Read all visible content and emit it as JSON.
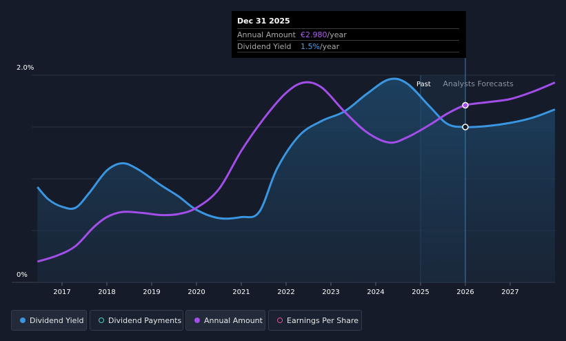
{
  "chart_data": {
    "type": "line",
    "x_ticks": [
      "2017",
      "2018",
      "2019",
      "2020",
      "2021",
      "2022",
      "2023",
      "2024",
      "2025",
      "2026",
      "2027"
    ],
    "y_ticks": [
      "2.0%",
      "0%"
    ],
    "ylim": [
      0,
      2.0
    ],
    "grid": true,
    "past_label": "Past",
    "forecast_label": "Analysts Forecasts",
    "series": [
      {
        "name": "Dividend Yield",
        "color": "#3a96e0",
        "x": [
          2016.45,
          2016.7,
          2017.0,
          2017.3,
          2017.6,
          2018.0,
          2018.35,
          2018.7,
          2019.2,
          2019.6,
          2020.0,
          2020.5,
          2021.0,
          2021.4,
          2021.8,
          2022.3,
          2022.8,
          2023.3,
          2023.8,
          2024.3,
          2024.7,
          2025.2,
          2025.6,
          2026.0,
          2026.5,
          2027.0,
          2027.5,
          2028.0
        ],
        "y": [
          0.92,
          0.8,
          0.73,
          0.72,
          0.86,
          1.08,
          1.15,
          1.09,
          0.94,
          0.83,
          0.7,
          0.62,
          0.63,
          0.68,
          1.1,
          1.42,
          1.56,
          1.65,
          1.82,
          1.96,
          1.92,
          1.7,
          1.53,
          1.5,
          1.51,
          1.54,
          1.59,
          1.67
        ]
      },
      {
        "name": "Annual Amount",
        "color": "#a24ee8",
        "x": [
          2016.45,
          2016.9,
          2017.3,
          2017.7,
          2018.0,
          2018.35,
          2018.8,
          2019.2,
          2019.6,
          2020.0,
          2020.5,
          2021.0,
          2021.5,
          2022.0,
          2022.4,
          2022.8,
          2023.3,
          2023.8,
          2024.3,
          2024.7,
          2025.2,
          2025.6,
          2026.0,
          2026.5,
          2027.0,
          2027.5,
          2028.0
        ],
        "y": [
          0.2,
          0.26,
          0.35,
          0.53,
          0.63,
          0.68,
          0.67,
          0.65,
          0.66,
          0.72,
          0.9,
          1.27,
          1.58,
          1.83,
          1.93,
          1.88,
          1.65,
          1.45,
          1.35,
          1.4,
          1.52,
          1.63,
          1.71,
          1.74,
          1.77,
          1.84,
          1.93
        ]
      }
    ],
    "highlight": {
      "x": 2026.0,
      "dividend_yield": 1.5,
      "annual_amount": 1.71
    },
    "tooltip": {
      "date": "Dec 31 2025",
      "rows": [
        {
          "key": "Annual Amount",
          "value": "€2.980",
          "unit": "/year"
        },
        {
          "key": "Dividend Yield",
          "value": "1.5%",
          "unit": "/year"
        }
      ]
    }
  },
  "legend": [
    {
      "label": "Dividend Yield",
      "color": "#3a96e0",
      "filled": true
    },
    {
      "label": "Dividend Payments",
      "color": "#4fd1c5",
      "filled": false
    },
    {
      "label": "Annual Amount",
      "color": "#a24ee8",
      "filled": true
    },
    {
      "label": "Earnings Per Share",
      "color": "#e0509a",
      "filled": false
    }
  ]
}
